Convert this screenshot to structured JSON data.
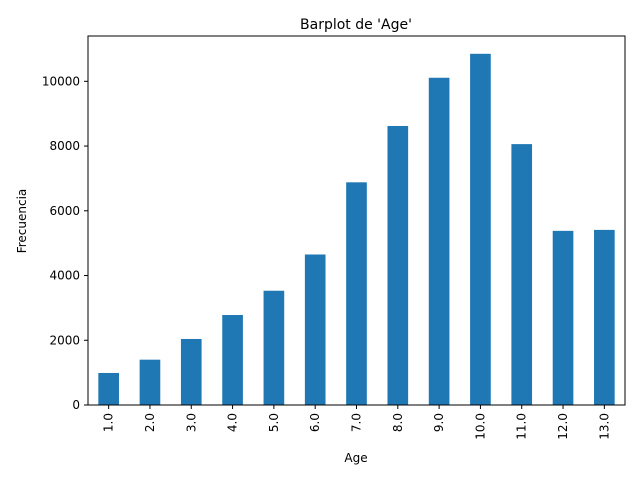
{
  "chart_data": {
    "type": "bar",
    "title": "Barplot de 'Age'",
    "xlabel": "Age",
    "ylabel": "Frecuencia",
    "categories": [
      "1.0",
      "2.0",
      "3.0",
      "4.0",
      "5.0",
      "6.0",
      "7.0",
      "8.0",
      "9.0",
      "10.0",
      "11.0",
      "12.0",
      "13.0"
    ],
    "values": [
      990,
      1400,
      2040,
      2780,
      3530,
      4650,
      6880,
      8620,
      10110,
      10850,
      8060,
      5380,
      5410
    ],
    "ylim": [
      0,
      11400
    ],
    "yticks": [
      0,
      2000,
      4000,
      6000,
      8000,
      10000
    ],
    "ytick_labels": [
      "0",
      "2000",
      "4000",
      "6000",
      "8000",
      "10000"
    ],
    "bar_color": "#1f77b4",
    "grid": false,
    "legend": "none"
  }
}
